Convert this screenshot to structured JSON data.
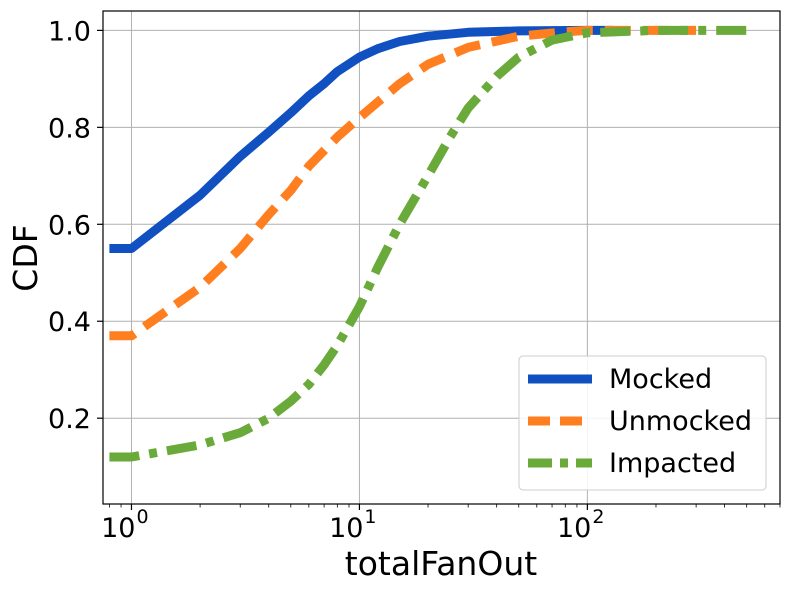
{
  "chart_data": {
    "type": "line",
    "xlabel": "totalFanOut",
    "ylabel": "CDF",
    "xscale": "log",
    "xlim": [
      0.75,
      700
    ],
    "ylim": [
      0.023,
      1.04
    ],
    "grid": true,
    "legend_position": "lower-right",
    "x_ticks": [
      {
        "value": 1,
        "base": "10",
        "exp": "0"
      },
      {
        "value": 10,
        "base": "10",
        "exp": "1"
      },
      {
        "value": 100,
        "base": "10",
        "exp": "2"
      }
    ],
    "y_ticks": [
      {
        "value": 0.2,
        "label": "0.2"
      },
      {
        "value": 0.4,
        "label": "0.4"
      },
      {
        "value": 0.6,
        "label": "0.6"
      },
      {
        "value": 0.8,
        "label": "0.8"
      },
      {
        "value": 1.0,
        "label": "1.0"
      }
    ],
    "series": [
      {
        "name": "Mocked",
        "color": "#1050c0",
        "dash": "solid",
        "x": [
          0.8,
          1,
          2,
          3,
          4,
          5,
          6,
          7,
          8,
          10,
          12,
          15,
          20,
          30,
          50,
          100,
          130
        ],
        "y": [
          0.55,
          0.55,
          0.66,
          0.74,
          0.79,
          0.83,
          0.865,
          0.89,
          0.915,
          0.945,
          0.962,
          0.977,
          0.988,
          0.996,
          0.999,
          1.0,
          1.0
        ]
      },
      {
        "name": "Unmocked",
        "color": "#ff7f20",
        "dash": "dashed",
        "x": [
          0.8,
          1,
          2,
          3,
          4,
          5,
          6,
          8,
          10,
          15,
          20,
          30,
          50,
          80,
          100,
          200,
          300
        ],
        "y": [
          0.37,
          0.37,
          0.47,
          0.55,
          0.62,
          0.67,
          0.72,
          0.78,
          0.82,
          0.89,
          0.93,
          0.965,
          0.988,
          0.997,
          1.0,
          1.0,
          1.0
        ]
      },
      {
        "name": "Impacted",
        "color": "#6aaa3a",
        "dash": "dashdot",
        "x": [
          0.8,
          1,
          2,
          3,
          4,
          5,
          6,
          7,
          8,
          10,
          12,
          15,
          20,
          25,
          30,
          40,
          50,
          70,
          100,
          200,
          500
        ],
        "y": [
          0.12,
          0.12,
          0.145,
          0.17,
          0.2,
          0.235,
          0.27,
          0.31,
          0.35,
          0.43,
          0.51,
          0.6,
          0.7,
          0.78,
          0.84,
          0.905,
          0.945,
          0.98,
          0.995,
          1.0,
          1.0
        ]
      }
    ]
  }
}
